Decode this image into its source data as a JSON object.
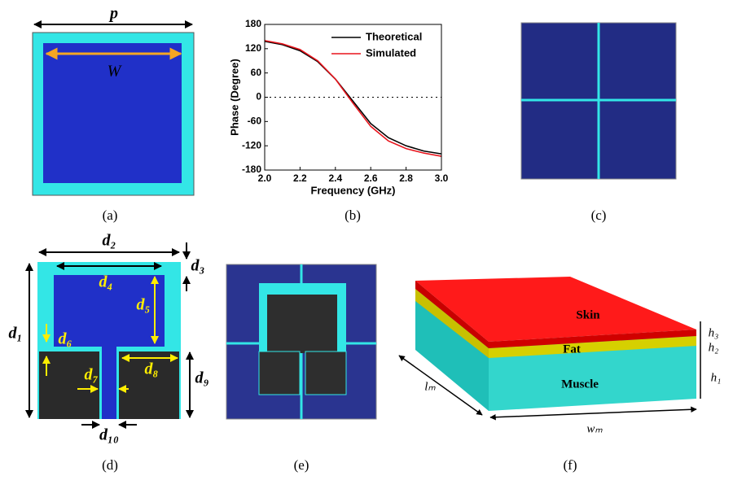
{
  "panels": {
    "a": {
      "caption": "(a)",
      "period_label": "p",
      "width_label": "W"
    },
    "b": {
      "caption": "(b)"
    },
    "c": {
      "caption": "(c)"
    },
    "d": {
      "caption": "(d)",
      "labels": {
        "d1": "d₁",
        "d2": "d₂",
        "d3": "d₃",
        "d4": "d₄",
        "d5": "d₅",
        "d6": "d₆",
        "d7": "d₇",
        "d8": "d₈",
        "d9": "d₉",
        "d10": "d₁₀"
      }
    },
    "e": {
      "caption": "(e)"
    },
    "f": {
      "caption": "(f)",
      "skin": "Skin",
      "fat": "Fat",
      "muscle": "Muscle",
      "h1": "h₁",
      "h2": "h₂",
      "h3": "h₃",
      "lm": "lₘ",
      "wm": "wₘ"
    }
  },
  "chart_data": {
    "type": "line",
    "xlabel": "Frequency (GHz)",
    "ylabel": "Phase (Degree)",
    "x": [
      2.0,
      2.1,
      2.2,
      2.3,
      2.4,
      2.5,
      2.6,
      2.7,
      2.8,
      2.9,
      3.0
    ],
    "series": [
      {
        "name": "Theoretical",
        "color": "#000000",
        "values": [
          138,
          130,
          115,
          88,
          45,
          -10,
          -65,
          -100,
          -120,
          -133,
          -140
        ]
      },
      {
        "name": "Simulated",
        "color": "#e8141c",
        "values": [
          140,
          132,
          118,
          90,
          45,
          -15,
          -72,
          -108,
          -127,
          -138,
          -146
        ]
      }
    ],
    "xlim": [
      2.0,
      3.0
    ],
    "xticks": [
      {
        "value": 2.0,
        "label": "2.0"
      },
      {
        "value": 2.2,
        "label": "2.2"
      },
      {
        "value": 2.4,
        "label": "2.4"
      },
      {
        "value": 2.6,
        "label": "2.6"
      },
      {
        "value": 2.8,
        "label": "2.8"
      },
      {
        "value": 3.0,
        "label": "3.0"
      }
    ],
    "ylim": [
      -180,
      180
    ],
    "yticks": [
      180,
      120,
      60,
      0,
      -60,
      -120,
      -180
    ],
    "reference_line": 0,
    "legend": "upper right"
  }
}
